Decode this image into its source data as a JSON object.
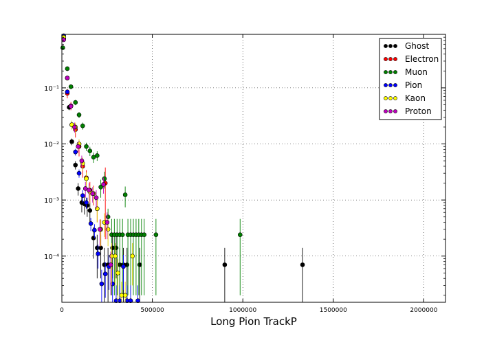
{
  "chart_data": {
    "type": "scatter",
    "title": "",
    "xlabel": "Long Pion TrackP",
    "ylabel": "",
    "xscale": "linear",
    "yscale": "log",
    "xlim": [
      0,
      2120000
    ],
    "ylim": [
      1.5e-05,
      0.9
    ],
    "grid": true,
    "legend_position": "top-right",
    "x_ticks": [
      {
        "value": 0,
        "label": "0"
      },
      {
        "value": 500000,
        "label": "500000"
      },
      {
        "value": 1000000,
        "label": "1000000"
      },
      {
        "value": 1500000,
        "label": "1500000"
      },
      {
        "value": 2000000,
        "label": "2000000"
      }
    ],
    "y_ticks": [
      {
        "value": 0.1,
        "label": "10⁻¹"
      },
      {
        "value": 0.01,
        "label": "10⁻²"
      },
      {
        "value": 0.001,
        "label": "10⁻³"
      },
      {
        "value": 0.0001,
        "label": "10⁻⁴"
      }
    ],
    "series": [
      {
        "name": "Ghost",
        "color": "#000000",
        "x": [
          10000,
          40000,
          55000,
          75000,
          90000,
          110000,
          125000,
          140000,
          155000,
          175000,
          195000,
          215000,
          235000,
          255000,
          280000,
          300000,
          320000,
          340000,
          360000,
          430000,
          900000,
          1330000
        ],
        "y": [
          0.75,
          0.045,
          0.011,
          0.0042,
          0.0016,
          0.0009,
          0.00085,
          0.0008,
          0.00065,
          0.00021,
          0.00014,
          0.00014,
          7e-05,
          7e-05,
          0.00014,
          0.00014,
          7e-05,
          7e-05,
          7e-05,
          7e-05,
          7e-05,
          7e-05
        ],
        "err": [
          0.05,
          0.005,
          0.0015,
          0.0007,
          0.0004,
          0.0003,
          0.0003,
          0.0003,
          0.00025,
          0.00012,
          0.0001,
          0.0001,
          7e-05,
          7e-05,
          0.0001,
          0.0001,
          7e-05,
          7e-05,
          7e-05,
          7e-05,
          7e-05,
          7e-05
        ]
      },
      {
        "name": "Electron",
        "color": "#ff0000",
        "x": [
          10000,
          30000,
          50000,
          75000,
          95000,
          115000,
          135000,
          155000,
          175000,
          195000,
          215000,
          240000
        ],
        "y": [
          0.75,
          0.08,
          0.048,
          0.018,
          0.009,
          0.004,
          0.0025,
          0.0015,
          0.0013,
          0.0007,
          0.0003,
          0.002
        ],
        "err": [
          0.06,
          0.015,
          0.008,
          0.005,
          0.003,
          0.0015,
          0.0009,
          0.0006,
          0.0005,
          0.0003,
          0.00015,
          0.0018
        ]
      },
      {
        "name": "Muon",
        "color": "#008000",
        "x": [
          5000,
          30000,
          50000,
          75000,
          95000,
          115000,
          135000,
          155000,
          175000,
          195000,
          215000,
          235000,
          255000,
          275000,
          290000,
          305000,
          320000,
          335000,
          350000,
          365000,
          380000,
          395000,
          410000,
          425000,
          440000,
          455000,
          520000,
          985000
        ],
        "y": [
          0.52,
          0.22,
          0.105,
          0.055,
          0.033,
          0.021,
          0.009,
          0.0075,
          0.0058,
          0.0062,
          0.0017,
          0.0024,
          0.0005,
          0.00024,
          0.00024,
          0.00024,
          0.00024,
          0.00024,
          0.00124,
          0.00024,
          0.00024,
          0.00024,
          0.00024,
          0.00024,
          0.00024,
          0.00024,
          0.00024,
          0.00024
        ],
        "err": [
          0.04,
          0.02,
          0.01,
          0.006,
          0.004,
          0.003,
          0.0015,
          0.0014,
          0.0012,
          0.0012,
          0.0006,
          0.0008,
          0.0002,
          0.00022,
          0.00022,
          0.00022,
          0.00022,
          0.00022,
          0.0005,
          0.00022,
          0.00022,
          0.00022,
          0.00022,
          0.00022,
          0.00022,
          0.00022,
          0.00022,
          0.00022
        ]
      },
      {
        "name": "Pion",
        "color": "#0000ff",
        "x": [
          10000,
          30000,
          55000,
          75000,
          95000,
          115000,
          135000,
          160000,
          180000,
          200000,
          220000,
          240000,
          260000,
          280000,
          300000,
          320000,
          340000,
          360000,
          380000,
          420000
        ],
        "y": [
          0.85,
          0.085,
          0.022,
          0.0072,
          0.003,
          0.0012,
          0.0009,
          0.00038,
          0.00029,
          0.00011,
          3.2e-05,
          4.8e-05,
          6.5e-05,
          3.2e-05,
          1.6e-05,
          1.6e-05,
          6.5e-05,
          1.6e-05,
          1.6e-05,
          1.6e-05
        ],
        "err": [
          0.05,
          0.008,
          0.003,
          0.001,
          0.0005,
          0.0003,
          0.0002,
          0.0001,
          8e-05,
          5e-05,
          2.5e-05,
          3e-05,
          4e-05,
          2.5e-05,
          1.4e-05,
          1.4e-05,
          4e-05,
          1.4e-05,
          1.4e-05,
          1.4e-05
        ]
      },
      {
        "name": "Kaon",
        "color": "#ffff00",
        "x": [
          10000,
          30000,
          55000,
          75000,
          95000,
          115000,
          135000,
          155000,
          175000,
          195000,
          215000,
          235000,
          255000,
          275000,
          295000,
          310000,
          330000,
          350000,
          390000
        ],
        "y": [
          0.8,
          0.15,
          0.022,
          0.02,
          0.01,
          0.0045,
          0.0024,
          0.0014,
          0.0013,
          0.0007,
          0.0003,
          0.0004,
          0.0003,
          0.0001,
          0.0001,
          5e-05,
          2e-05,
          2e-05,
          0.0001
        ],
        "err": [
          0.06,
          0.015,
          0.004,
          0.004,
          0.002,
          0.0012,
          0.0007,
          0.0004,
          0.0004,
          0.0003,
          0.00015,
          0.00018,
          0.00015,
          7e-05,
          7e-05,
          4e-05,
          1.5e-05,
          1.5e-05,
          7e-05
        ]
      },
      {
        "name": "Proton",
        "color": "#bf00bf",
        "x": [
          10000,
          30000,
          50000,
          70000,
          90000,
          110000,
          130000,
          150000,
          170000,
          190000,
          210000,
          230000,
          250000,
          270000
        ],
        "y": [
          0.72,
          0.15,
          0.047,
          0.02,
          0.009,
          0.005,
          0.0016,
          0.0015,
          0.0013,
          0.0011,
          0.0003,
          0.0019,
          0.0004,
          7e-05
        ],
        "err": [
          0.05,
          0.014,
          0.006,
          0.004,
          0.002,
          0.0012,
          0.0005,
          0.0005,
          0.0004,
          0.0004,
          0.00015,
          0.0006,
          0.0002,
          5e-05
        ]
      }
    ]
  }
}
